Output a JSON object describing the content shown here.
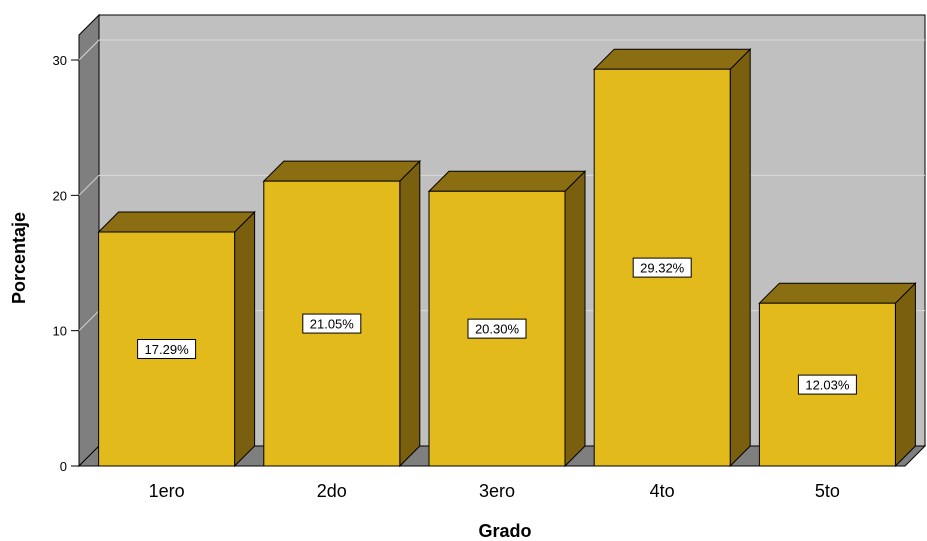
{
  "chart_data": {
    "type": "bar",
    "categories": [
      "1ero",
      "2do",
      "3ero",
      "4to",
      "5to"
    ],
    "values": [
      17.29,
      21.05,
      20.3,
      29.32,
      12.03
    ],
    "data_labels": [
      "17.29%",
      "21.05%",
      "20.30%",
      "29.32%",
      "12.03%"
    ],
    "xlabel": "Grado",
    "ylabel": "Porcentaje",
    "yticks": [
      "0",
      "10",
      "20",
      "30"
    ],
    "ylim": [
      0,
      30
    ],
    "grid": true,
    "style": "3d",
    "colors": {
      "bar_front": "#E2BA1C",
      "bar_top": "#8C6E12",
      "bar_side": "#7A600E",
      "plot_back": "#C0C0C0",
      "plot_left_wall": "#7F7F7F",
      "plot_floor": "#7F7F7F",
      "gridline": "#D9D9D9"
    }
  }
}
